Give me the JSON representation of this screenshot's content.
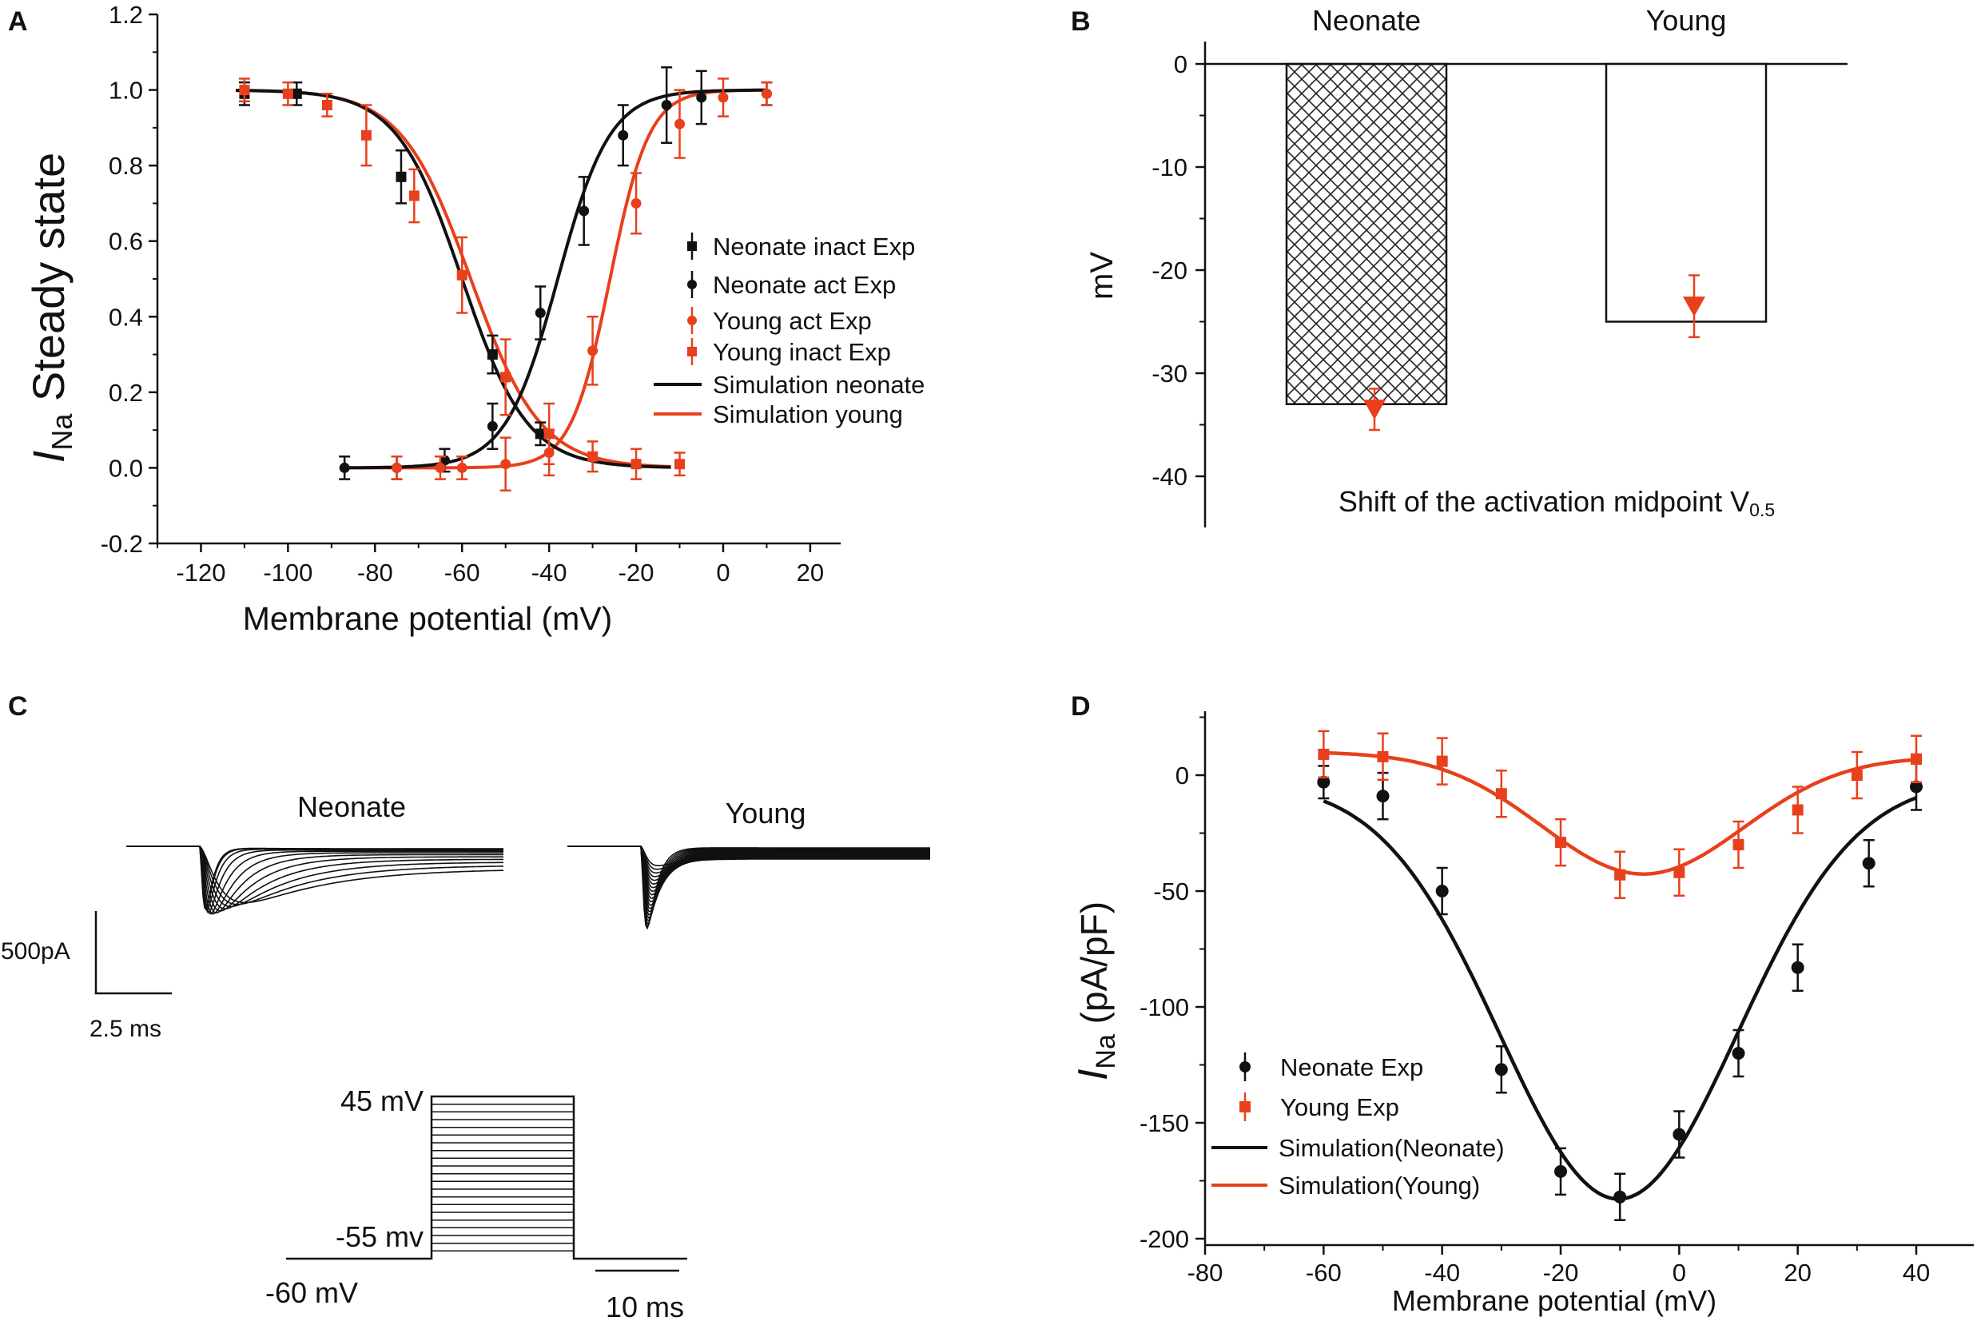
{
  "colors": {
    "neonate": "#111111",
    "young": "#e8401c"
  },
  "chart_data": [
    {
      "panel": "A",
      "type": "scatter",
      "title": "",
      "xlabel": "Membrane potential (mV)",
      "ylabel": {
        "main": "I",
        "sub": "Na",
        "rest": " Steady state"
      },
      "xlim": [
        -130,
        27
      ],
      "ylim": [
        -0.2,
        1.2
      ],
      "xticks": [
        -120,
        -100,
        -80,
        -60,
        -40,
        -20,
        0,
        20
      ],
      "xticklabels": [
        "-120",
        "-100",
        "-80",
        "-60",
        "-40",
        "-20",
        "0",
        "20"
      ],
      "yticks": [
        -0.2,
        0.0,
        0.2,
        0.4,
        0.6,
        0.8,
        1.0,
        1.2
      ],
      "yticklabels": [
        "-0.2",
        "0.0",
        "0.2",
        "0.4",
        "0.6",
        "0.8",
        "1.0",
        "1.2"
      ],
      "legend_position": "right",
      "series": [
        {
          "name": "Neonate inact Exp",
          "color": "#111111",
          "marker": "square",
          "x": [
            -110,
            -98,
            -74,
            -53,
            -42
          ],
          "y": [
            0.99,
            0.99,
            0.77,
            0.3,
            0.09
          ],
          "err": [
            0.03,
            0.03,
            0.07,
            0.05,
            0.03
          ]
        },
        {
          "name": "Neonate act Exp",
          "color": "#111111",
          "marker": "circle",
          "x": [
            -87,
            -75,
            -64,
            -53,
            -42,
            -32,
            -23,
            -13,
            -5,
            10
          ],
          "y": [
            0.0,
            0.0,
            0.02,
            0.11,
            0.41,
            0.68,
            0.88,
            0.96,
            0.98,
            0.99
          ],
          "err": [
            0.03,
            0.03,
            0.03,
            0.06,
            0.07,
            0.09,
            0.08,
            0.1,
            0.07,
            0.03
          ]
        },
        {
          "name": "Young  act Exp",
          "color": "#e8401c",
          "marker": "circle",
          "x": [
            -75,
            -65,
            -60,
            -50,
            -40,
            -30,
            -20,
            -10,
            0,
            10
          ],
          "y": [
            0.0,
            0.0,
            0.0,
            0.01,
            0.04,
            0.31,
            0.7,
            0.91,
            0.98,
            0.99
          ],
          "err": [
            0.03,
            0.03,
            0.03,
            0.07,
            0.06,
            0.09,
            0.08,
            0.09,
            0.05,
            0.03
          ]
        },
        {
          "name": "Young  inact Exp",
          "color": "#e8401c",
          "marker": "square",
          "x": [
            -110,
            -100,
            -91,
            -82,
            -71,
            -60,
            -50,
            -40,
            -30,
            -20,
            -10
          ],
          "y": [
            1.0,
            0.99,
            0.96,
            0.88,
            0.72,
            0.51,
            0.24,
            0.09,
            0.03,
            0.01,
            0.01
          ],
          "err": [
            0.03,
            0.03,
            0.03,
            0.08,
            0.07,
            0.1,
            0.1,
            0.08,
            0.04,
            0.04,
            0.03
          ]
        },
        {
          "name": "Simulation  neonate",
          "color": "#111111",
          "type": "line",
          "curves": [
            {
              "kind": "inact",
              "vhalf": -60,
              "k": 7.5,
              "from": -112,
              "to": -12
            },
            {
              "kind": "act",
              "vhalf": -38,
              "k": 6.0,
              "from": -88,
              "to": 10
            }
          ]
        },
        {
          "name": "Simulation  young",
          "color": "#e8401c",
          "type": "line",
          "curves": [
            {
              "kind": "inact",
              "vhalf": -58,
              "k": 8.0,
              "from": -112,
              "to": -12
            },
            {
              "kind": "act",
              "vhalf": -26,
              "k": 4.5,
              "from": -88,
              "to": 10
            }
          ]
        }
      ]
    },
    {
      "panel": "B",
      "type": "bar",
      "title": "Shift of the activation midpoint",
      "title_sym": "V",
      "title_sub": "0.5",
      "categories": [
        "Neonate",
        "Young"
      ],
      "values": [
        -33,
        -25
      ],
      "patterns": [
        "crosshatch",
        "none"
      ],
      "sim_values": [
        -33.5,
        -23.5
      ],
      "sim_err": [
        2,
        3
      ],
      "sim_color": "#e8401c",
      "xlabel": "",
      "ylabel": "mV",
      "ylim": [
        -45,
        0
      ],
      "yticks": [
        0,
        -10,
        -20,
        -30,
        -40
      ],
      "yticklabels": [
        "0",
        "-10",
        "-20",
        "-30",
        "-40"
      ]
    },
    {
      "panel": "C",
      "type": "line",
      "title": "",
      "groups": [
        {
          "title": "Neonate",
          "n_traces": 12,
          "peak_range_mV": [
            -55,
            0
          ]
        },
        {
          "title": "Young",
          "n_traces": 20,
          "peak_range_mV": [
            -55,
            45
          ]
        }
      ],
      "scale_current": "500pA",
      "scale_time": "2.5 ms",
      "protocol": {
        "top": "45 mV",
        "bottom": "-55 mv",
        "hold": "-60 mV",
        "time": "10 ms",
        "n_steps": 21
      }
    },
    {
      "panel": "D",
      "type": "scatter",
      "title": "",
      "xlabel": "Membrane potential (mV)",
      "ylabel": {
        "main": "I",
        "sub": "Na",
        "rest": " (pA/pF)"
      },
      "xlim": [
        -80,
        45
      ],
      "ylim": [
        -200,
        27
      ],
      "xticks": [
        -80,
        -60,
        -40,
        -20,
        0,
        20,
        40
      ],
      "xticklabels": [
        "-80",
        "-60",
        "-40",
        "-20",
        "0",
        "20",
        "40"
      ],
      "yticks": [
        0,
        -50,
        -100,
        -150,
        -200
      ],
      "yticklabels": [
        "0",
        "-50",
        "-100",
        "-150",
        "-200"
      ],
      "legend_position": "bottom-left",
      "series": [
        {
          "name": "Neonate Exp",
          "color": "#111111",
          "marker": "circle",
          "x": [
            -60,
            -50,
            -40,
            -30,
            -20,
            -10,
            0,
            10,
            20,
            32,
            40
          ],
          "y": [
            -3,
            -9,
            -50,
            -127,
            -171,
            -182,
            -155,
            -120,
            -83,
            -38,
            -5
          ],
          "err": [
            7,
            10,
            10,
            10,
            10,
            10,
            10,
            10,
            10,
            10,
            10
          ]
        },
        {
          "name": "Young Exp",
          "color": "#e8401c",
          "marker": "square",
          "x": [
            -60,
            -50,
            -40,
            -30,
            -20,
            -10,
            0,
            10,
            20,
            30,
            40
          ],
          "y": [
            9,
            8,
            6,
            -8,
            -29,
            -43,
            -42,
            -30,
            -15,
            0,
            7
          ],
          "err": [
            10,
            10,
            10,
            10,
            10,
            10,
            10,
            10,
            10,
            10,
            10
          ]
        },
        {
          "name": "Simulation(Neonate)",
          "color": "#111111",
          "type": "line",
          "model": {
            "base": 0,
            "offset_start": -3,
            "amp": -185,
            "center": -10,
            "sigma": 20,
            "from": -60,
            "to": 40
          }
        },
        {
          "name": "Simulation(Young)",
          "color": "#e8401c",
          "type": "line",
          "model": {
            "base": 0,
            "offset_start": 10,
            "amp": -53,
            "center": -6,
            "sigma": 17,
            "from": -60,
            "to": 40
          }
        }
      ]
    }
  ]
}
